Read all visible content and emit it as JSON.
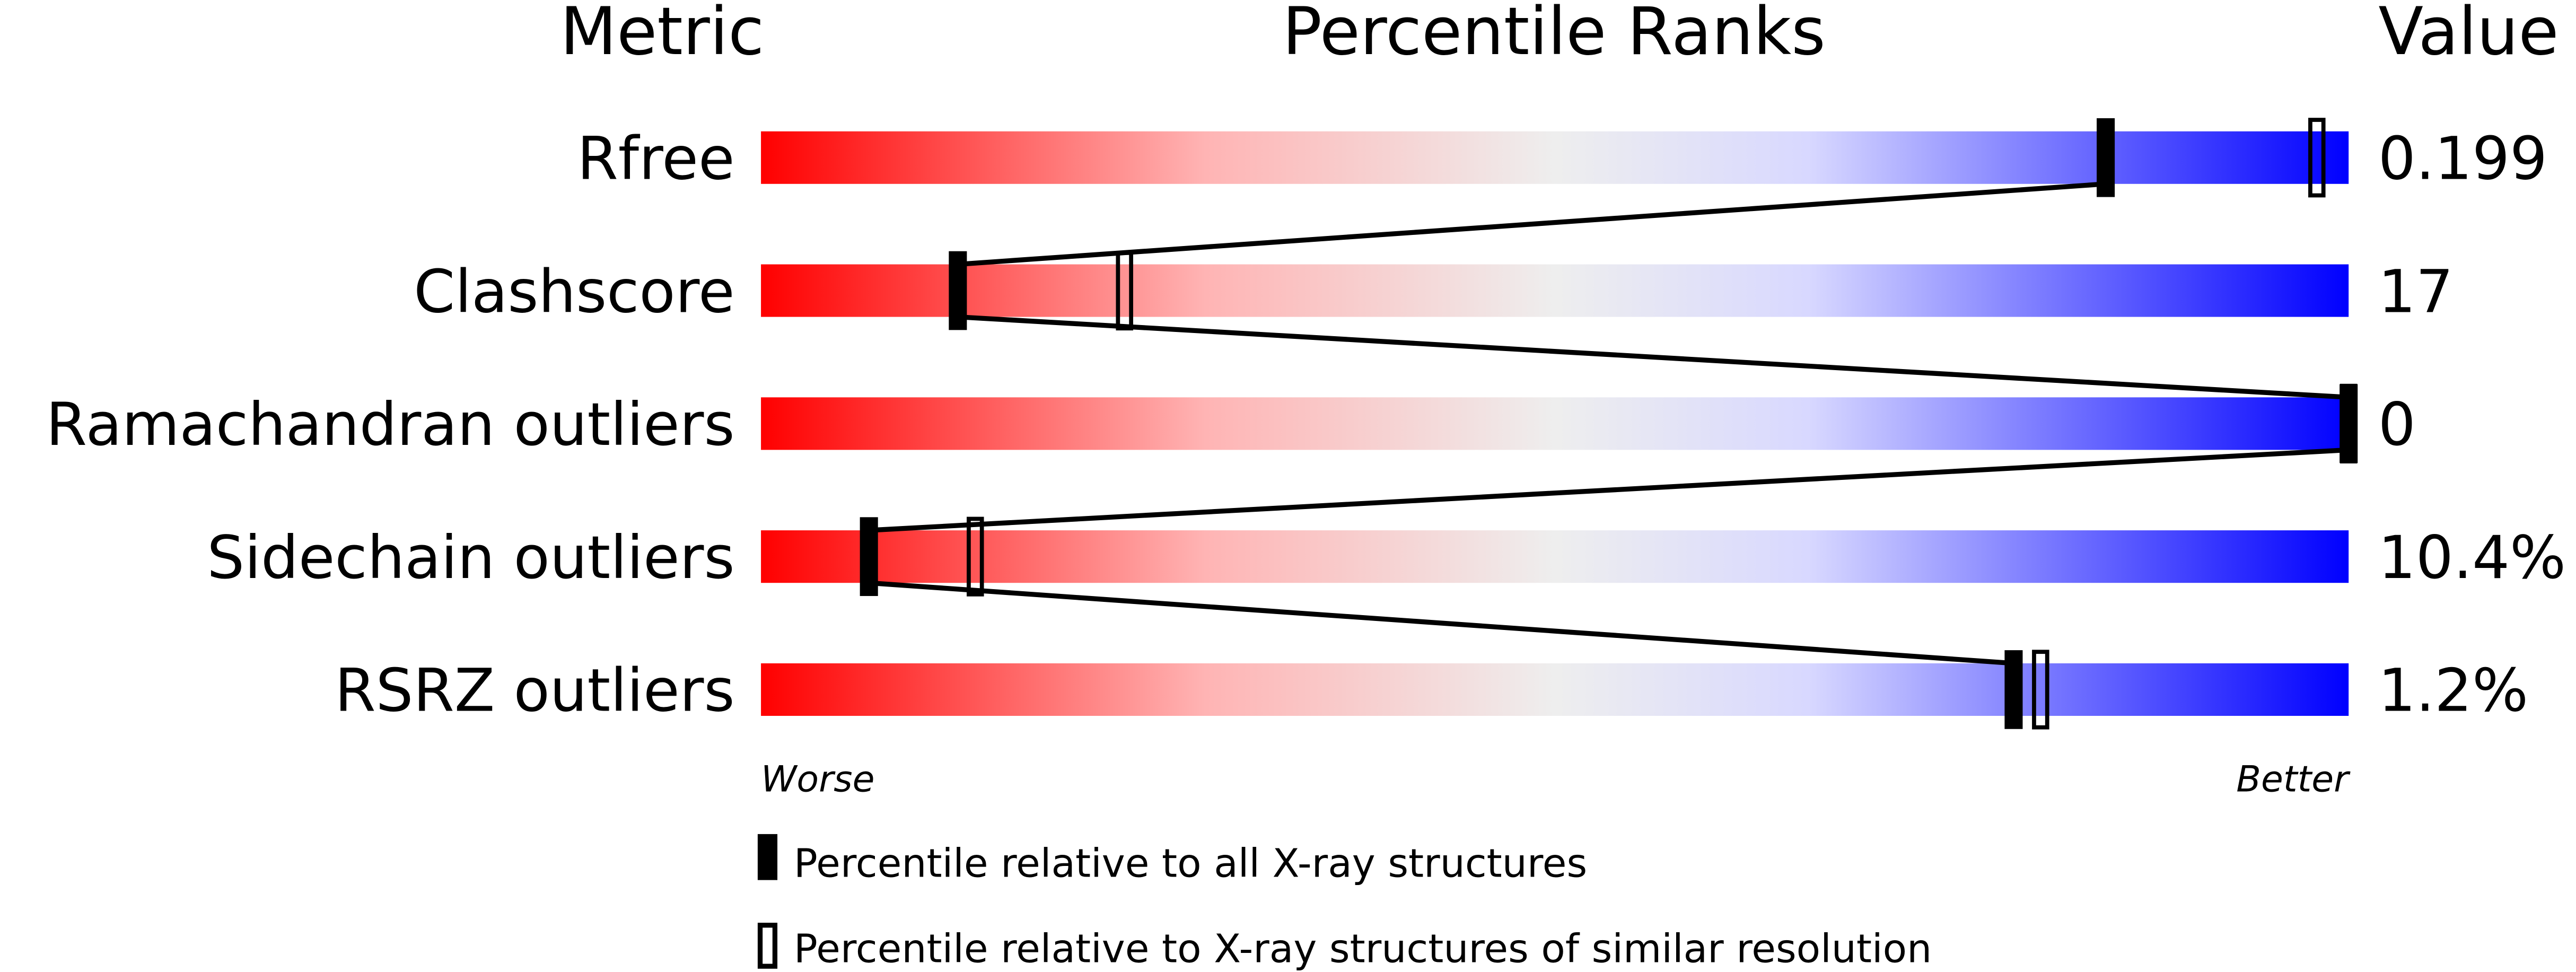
{
  "chart_data": {
    "type": "percentile-slider",
    "headers": {
      "metric": "Metric",
      "ranks": "Percentile Ranks",
      "value": "Value"
    },
    "scale": {
      "min_label": "Worse",
      "max_label": "Better",
      "range": [
        0,
        100
      ]
    },
    "gradient_colors": [
      "#ff0000",
      "#ffb4b4",
      "#eeeeee",
      "#d8d8ff",
      "#0000ff"
    ],
    "rows": [
      {
        "metric": "Rfree",
        "value": "0.199",
        "percentile_all": 84.7,
        "percentile_similar": 98.0
      },
      {
        "metric": "Clashscore",
        "value": "17",
        "percentile_all": 12.4,
        "percentile_similar": 22.9
      },
      {
        "metric": "Ramachandran outliers",
        "value": "0",
        "percentile_all": 100,
        "percentile_similar": 100
      },
      {
        "metric": "Sidechain outliers",
        "value": "10.4%",
        "percentile_all": 6.8,
        "percentile_similar": 13.5
      },
      {
        "metric": "RSRZ outliers",
        "value": "1.2%",
        "percentile_all": 78.9,
        "percentile_similar": 80.6
      }
    ],
    "legend": {
      "all": "Percentile relative to all X-ray structures",
      "similar": "Percentile relative to X-ray structures of similar resolution"
    }
  }
}
